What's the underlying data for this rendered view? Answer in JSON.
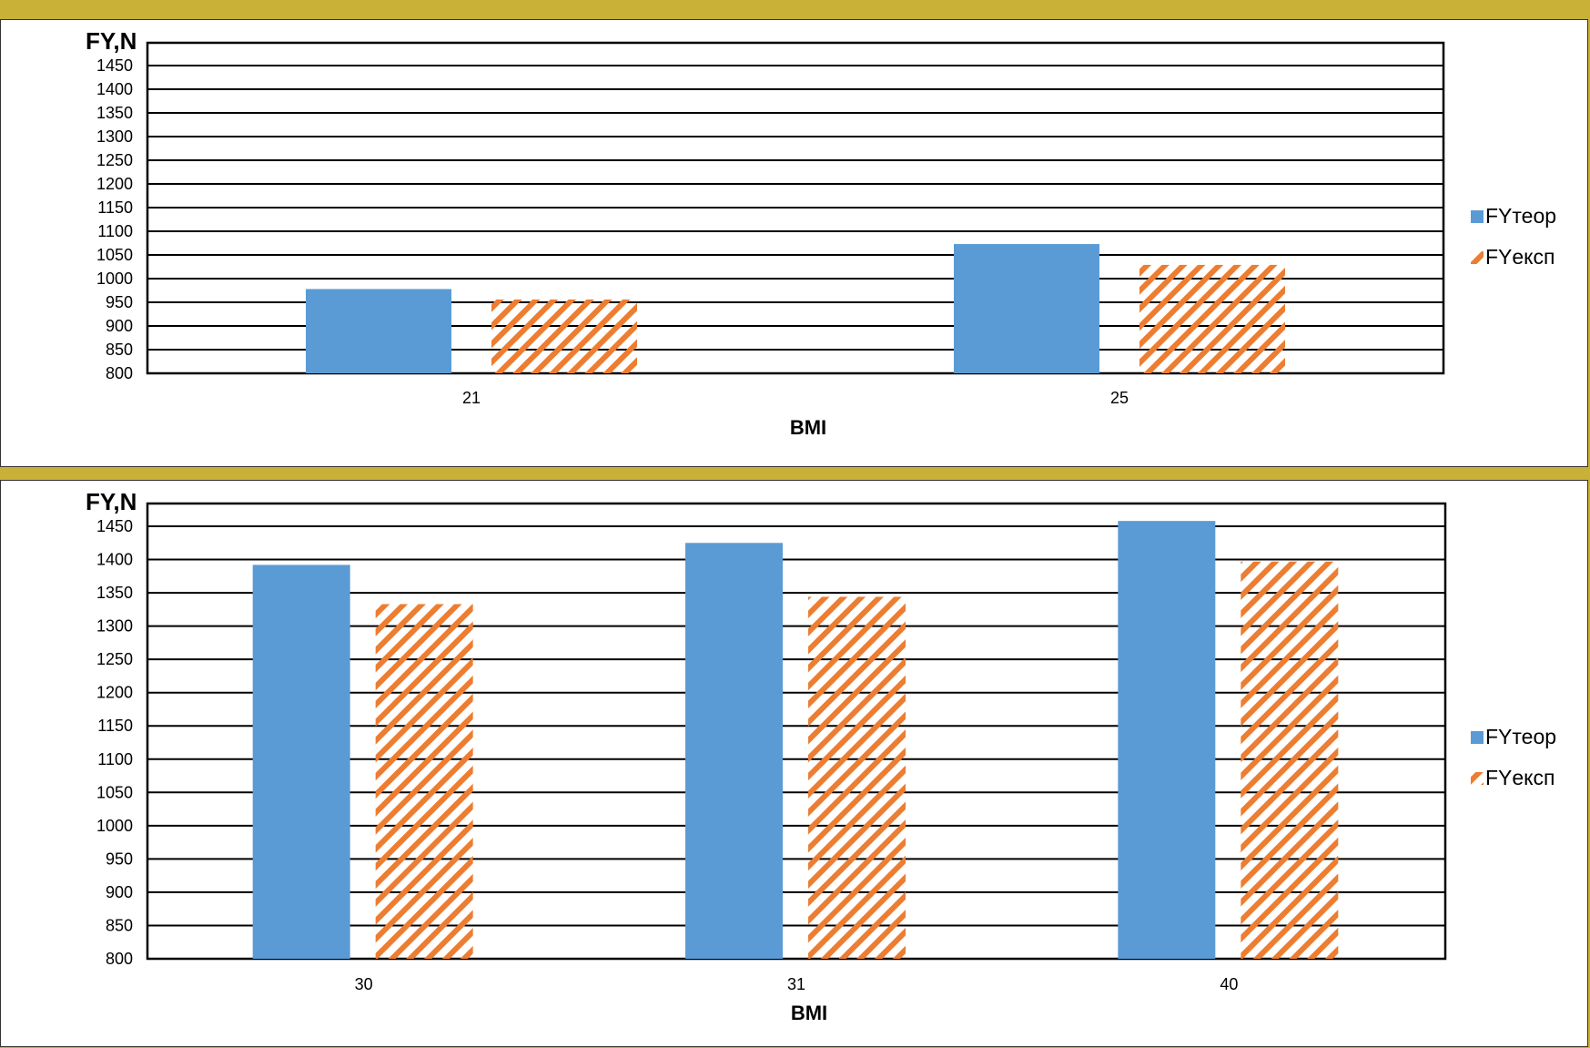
{
  "colors": {
    "frame": "#c9b037",
    "theoretical": "#5b9bd5",
    "experimental": "#ed7d31",
    "grid": "#000000"
  },
  "chart_data": [
    {
      "type": "bar",
      "ylabel": "FY,N",
      "xlabel": "BMI",
      "categories": [
        "21",
        "25"
      ],
      "ylim": [
        800,
        1450
      ],
      "ytick_step": 50,
      "grid": true,
      "legend_position": "right",
      "series": [
        {
          "name": "FYтеор",
          "values": [
            978,
            1073
          ],
          "pattern": "solid",
          "color": "#5b9bd5"
        },
        {
          "name": "FYексп",
          "values": [
            956,
            1029
          ],
          "pattern": "hatched",
          "color": "#ed7d31"
        }
      ]
    },
    {
      "type": "bar",
      "ylabel": "FY,N",
      "xlabel": "BMI",
      "categories": [
        "30",
        "31",
        "40"
      ],
      "ylim": [
        800,
        1450
      ],
      "ytick_step": 50,
      "grid": true,
      "legend_position": "right",
      "series": [
        {
          "name": "FYтеор",
          "values": [
            1392,
            1425,
            1458
          ],
          "pattern": "solid",
          "color": "#5b9bd5"
        },
        {
          "name": "FYексп",
          "values": [
            1333,
            1344,
            1397
          ],
          "pattern": "hatched",
          "color": "#ed7d31"
        }
      ]
    }
  ]
}
